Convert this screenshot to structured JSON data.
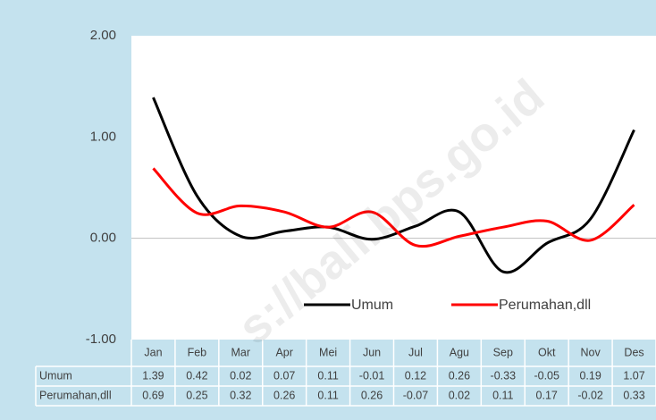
{
  "chart_data": {
    "type": "line",
    "categories": [
      "Jan",
      "Feb",
      "Mar",
      "Apr",
      "Mei",
      "Jun",
      "Jul",
      "Agu",
      "Sep",
      "Okt",
      "Nov",
      "Des"
    ],
    "series": [
      {
        "name": "Umum",
        "color": "#000000",
        "values": [
          1.39,
          0.42,
          0.02,
          0.07,
          0.11,
          -0.01,
          0.12,
          0.26,
          -0.33,
          -0.05,
          0.19,
          1.07
        ]
      },
      {
        "name": "Perumahan,dll",
        "color": "#ff0000",
        "values": [
          0.69,
          0.25,
          0.32,
          0.26,
          0.11,
          0.26,
          -0.07,
          0.02,
          0.11,
          0.17,
          -0.02,
          0.33
        ]
      }
    ],
    "ylim": [
      -1,
      2
    ],
    "yticks": [
      {
        "value": -1,
        "label": "-1.00"
      },
      {
        "value": 0,
        "label": "0.00"
      },
      {
        "value": 1,
        "label": "1.00"
      },
      {
        "value": 2,
        "label": "2.00"
      }
    ],
    "zero_line": true,
    "watermark": "s://bali.bps.go.id"
  }
}
